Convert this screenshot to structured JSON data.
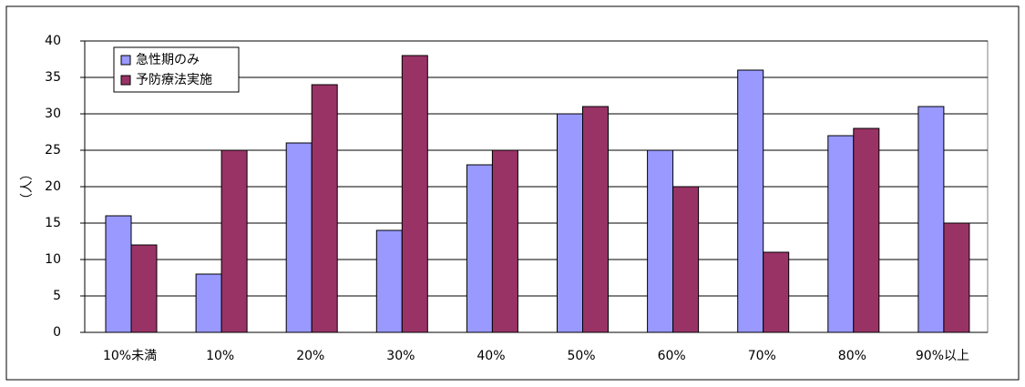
{
  "chart_data": {
    "type": "bar",
    "y_label": "（人）",
    "categories": [
      "10%未満",
      "10%",
      "20%",
      "30%",
      "40%",
      "50%",
      "60%",
      "70%",
      "80%",
      "90%以上"
    ],
    "series": [
      {
        "name": "急性期のみ",
        "color": "#9999ff",
        "values": [
          16,
          8,
          26,
          14,
          23,
          30,
          25,
          36,
          27,
          31
        ]
      },
      {
        "name": "予防療法実施",
        "color": "#993366",
        "values": [
          12,
          25,
          34,
          38,
          25,
          31,
          20,
          11,
          28,
          15
        ]
      }
    ],
    "ylim": [
      0,
      40
    ],
    "yticks": [
      0,
      5,
      10,
      15,
      20,
      25,
      30,
      35,
      40
    ],
    "grid": true,
    "legend": "upper-left"
  }
}
